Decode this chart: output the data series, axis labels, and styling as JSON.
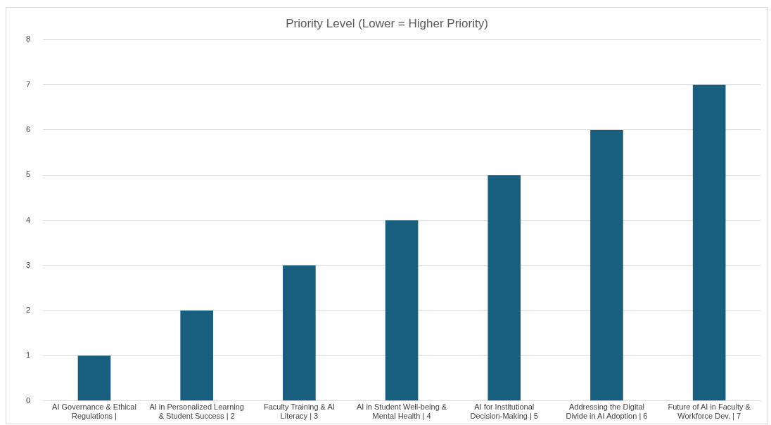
{
  "chart_data": {
    "type": "bar",
    "title": "Priority Level (Lower = Higher Priority)",
    "categories": [
      "AI Governance & Ethical Regulations |",
      "AI in Personalized Learning & Student Success | 2",
      "Faculty Training & AI Literacy | 3",
      "AI in Student Well-being & Mental Health | 4",
      "AI for Institutional Decision-Making | 5",
      "Addressing the Digital Divide in AI Adoption | 6",
      "Future of AI in Faculty & Workforce Dev. | 7"
    ],
    "values": [
      1,
      2,
      3,
      4,
      5,
      6,
      7
    ],
    "color": "#175e7f",
    "ylim": [
      0,
      8
    ],
    "yticks": [
      0,
      1,
      2,
      3,
      4,
      5,
      6,
      7,
      8
    ],
    "grid": "y"
  }
}
